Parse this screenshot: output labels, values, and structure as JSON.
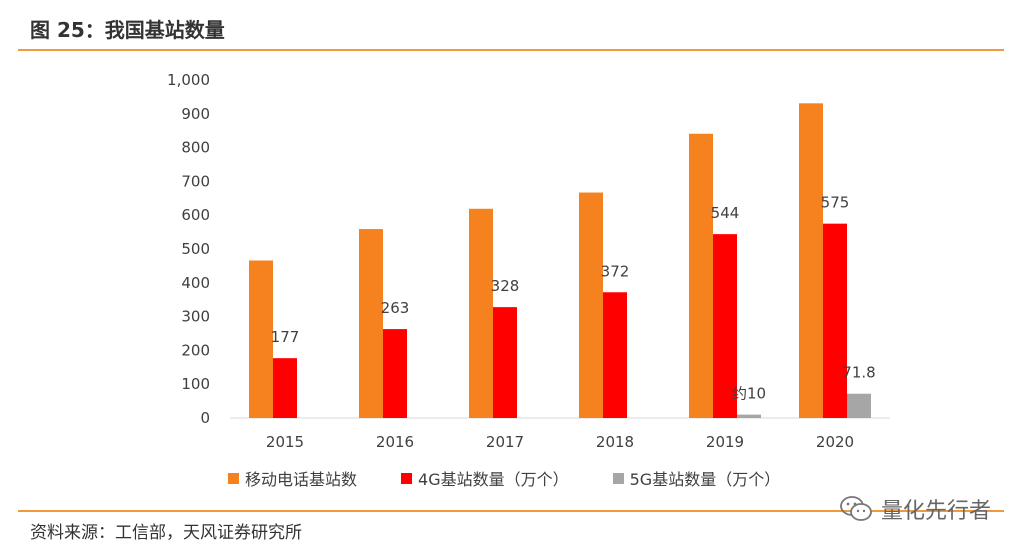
{
  "figure": {
    "title": "图 25：我国基站数量",
    "source": "资料来源：工信部，天风证券研究所",
    "watermark": "量化先行者"
  },
  "colors": {
    "series1": "#f5821f",
    "series2": "#ff0000",
    "series3": "#a6a6a6",
    "rule": "#f29a3a"
  },
  "chart_data": {
    "type": "bar",
    "title": "",
    "xlabel": "",
    "ylabel": "",
    "categories": [
      "2015",
      "2016",
      "2017",
      "2018",
      "2019",
      "2020"
    ],
    "ylim": [
      0,
      1000
    ],
    "yticks": [
      0,
      100,
      200,
      300,
      400,
      500,
      600,
      700,
      800,
      900,
      1000
    ],
    "ytick_labels": [
      "0",
      "100",
      "200",
      "300",
      "400",
      "500",
      "600",
      "700",
      "800",
      "900",
      "1,000"
    ],
    "grid": false,
    "legend_position": "bottom",
    "series": [
      {
        "name": "移动电话基站数",
        "values": [
          466,
          559,
          619,
          667,
          841,
          931
        ],
        "labels": [
          null,
          null,
          null,
          null,
          null,
          null
        ]
      },
      {
        "name": "4G基站数量（万个）",
        "values": [
          177,
          263,
          328,
          372,
          544,
          575
        ],
        "labels": [
          "177",
          "263",
          "328",
          "372",
          "544",
          "575"
        ]
      },
      {
        "name": "5G基站数量（万个）",
        "values": [
          0,
          0,
          0,
          0,
          10,
          71.8
        ],
        "labels": [
          null,
          null,
          null,
          null,
          "约10",
          "71.8"
        ]
      }
    ]
  }
}
